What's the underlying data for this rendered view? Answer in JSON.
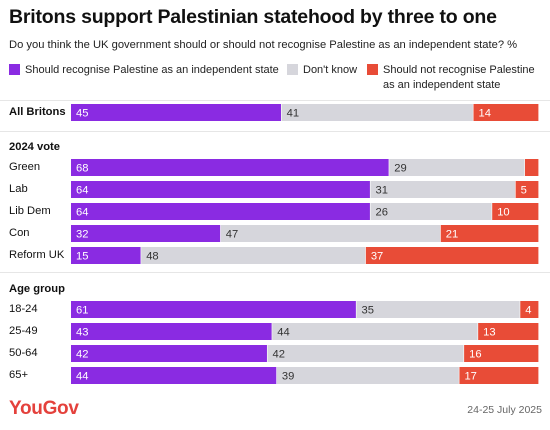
{
  "title": "Britons support Palestinian statehood by three to one",
  "subtitle": "Do you think the UK government should or should not recognise Palestine as an independent state? %",
  "legend": [
    {
      "label": "Should recognise Palestine as an independent state",
      "color": "#8a2be2"
    },
    {
      "label": "Don't know",
      "color": "#d6d6dc"
    },
    {
      "label": "Should not recognise Palestine as an independent state",
      "color": "#e84c37"
    }
  ],
  "footer": {
    "brand": "YouGov",
    "date": "24-25 July 2025"
  },
  "chart_data": {
    "type": "bar",
    "orientation": "horizontal",
    "stacked": true,
    "percent": true,
    "groups": [
      {
        "title": "",
        "categories": [
          "All Britons"
        ]
      },
      {
        "title": "2024 vote",
        "categories": [
          "Green",
          "Lab",
          "Lib Dem",
          "Con",
          "Reform UK"
        ]
      },
      {
        "title": "Age group",
        "categories": [
          "18-24",
          "25-49",
          "50-64",
          "65+"
        ]
      }
    ],
    "categories": [
      "All Britons",
      "Green",
      "Lab",
      "Lib Dem",
      "Con",
      "Reform UK",
      "18-24",
      "25-49",
      "50-64",
      "65+"
    ],
    "series": [
      {
        "name": "Should recognise Palestine as an independent state",
        "color": "#8a2be2",
        "values": [
          45,
          68,
          64,
          64,
          32,
          15,
          61,
          43,
          42,
          44
        ]
      },
      {
        "name": "Don't know",
        "color": "#d6d6dc",
        "values": [
          41,
          29,
          31,
          26,
          47,
          48,
          35,
          44,
          42,
          39
        ]
      },
      {
        "name": "Should not recognise Palestine as an independent state",
        "color": "#e84c37",
        "values": [
          14,
          3,
          5,
          10,
          21,
          37,
          4,
          13,
          16,
          17
        ]
      }
    ],
    "data_labels": [
      [
        "45",
        "41",
        "14"
      ],
      [
        "68",
        "29",
        ""
      ],
      [
        "64",
        "31",
        "5"
      ],
      [
        "64",
        "26",
        "10"
      ],
      [
        "32",
        "47",
        "21"
      ],
      [
        "15",
        "48",
        "37"
      ],
      [
        "61",
        "35",
        "4"
      ],
      [
        "43",
        "44",
        "13"
      ],
      [
        "42",
        "42",
        "16"
      ],
      [
        "44",
        "39",
        "17"
      ]
    ],
    "xlim": [
      0,
      100
    ],
    "grid": false,
    "legend_position": "top"
  }
}
